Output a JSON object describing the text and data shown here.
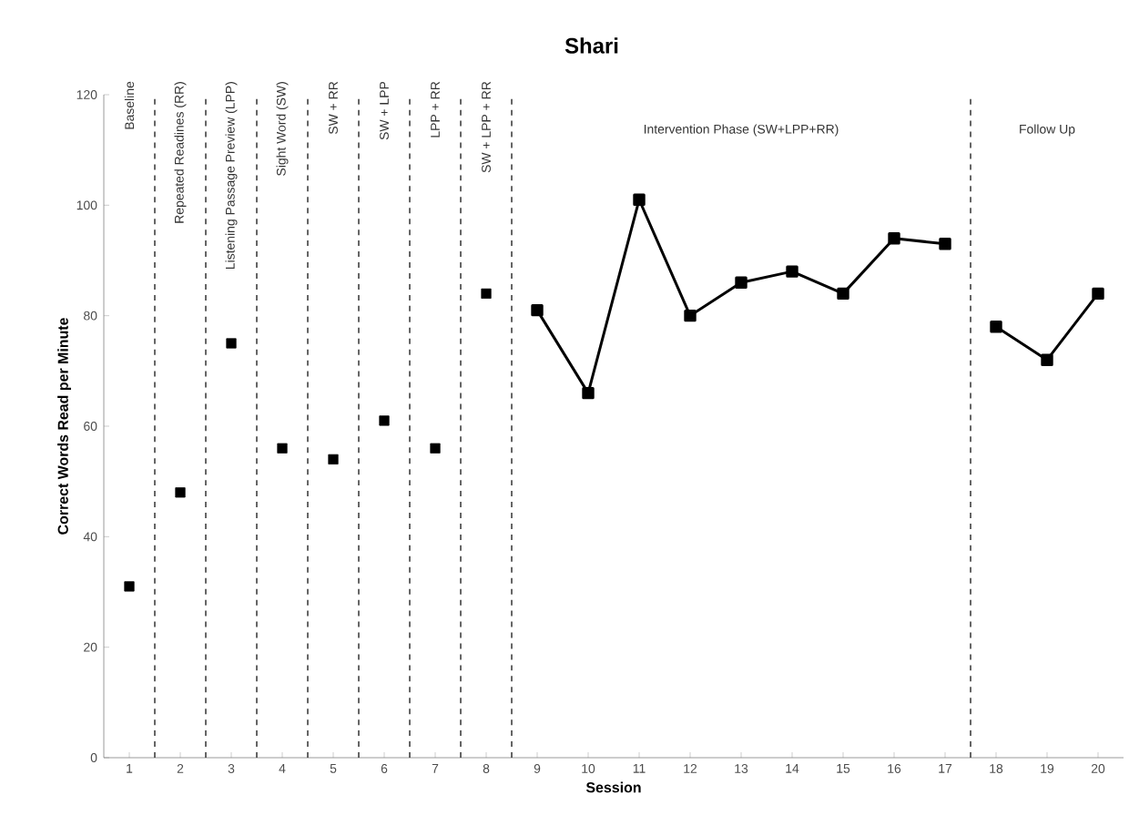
{
  "chart_data": {
    "type": "scatter",
    "title": "Shari",
    "xlabel": "Session",
    "ylabel": "Correct Words Read per Minute",
    "xlim": [
      0.5,
      20.5
    ],
    "ylim": [
      0,
      120
    ],
    "xticks": [
      1,
      2,
      3,
      4,
      5,
      6,
      7,
      8,
      9,
      10,
      11,
      12,
      13,
      14,
      15,
      16,
      17,
      18,
      19,
      20
    ],
    "yticks": [
      0,
      20,
      40,
      60,
      80,
      100,
      120
    ],
    "marker": "square",
    "grid": false,
    "series": [
      {
        "color": "#000000",
        "x": [
          1,
          2,
          3,
          4,
          5,
          6,
          7,
          8
        ],
        "values": [
          31,
          48,
          75,
          56,
          54,
          61,
          56,
          84
        ]
      },
      {
        "type": "line",
        "color": "#000000",
        "x": [
          9,
          10,
          11,
          12,
          13,
          14,
          15,
          16,
          17
        ],
        "values": [
          81,
          66,
          101,
          80,
          86,
          88,
          84,
          94,
          93
        ]
      },
      {
        "type": "line",
        "color": "#000000",
        "x": [
          18,
          19,
          20
        ],
        "values": [
          78,
          72,
          84
        ]
      }
    ],
    "ref_lines": [
      {
        "axis": "x",
        "value": 1.5,
        "line_style": "dashed"
      },
      {
        "axis": "x",
        "value": 2.5,
        "line_style": "dashed"
      },
      {
        "axis": "x",
        "value": 3.5,
        "line_style": "dashed"
      },
      {
        "axis": "x",
        "value": 4.5,
        "line_style": "dashed"
      },
      {
        "axis": "x",
        "value": 5.5,
        "line_style": "dashed"
      },
      {
        "axis": "x",
        "value": 6.5,
        "line_style": "dashed"
      },
      {
        "axis": "x",
        "value": 7.5,
        "line_style": "dashed"
      },
      {
        "axis": "x",
        "value": 8.5,
        "line_style": "dashed"
      },
      {
        "axis": "x",
        "value": 17.5,
        "line_style": "dashed"
      }
    ],
    "annotations": [
      "Baseline",
      "Repeated Readines (RR)",
      "Listening Passage Preview (LPP)",
      "Sight Word (SW)",
      "SW + RR",
      "SW + LPP",
      "LPP + RR",
      "SW + LPP + RR",
      "Intervention Phase (SW+LPP+RR)",
      "Follow Up"
    ]
  }
}
